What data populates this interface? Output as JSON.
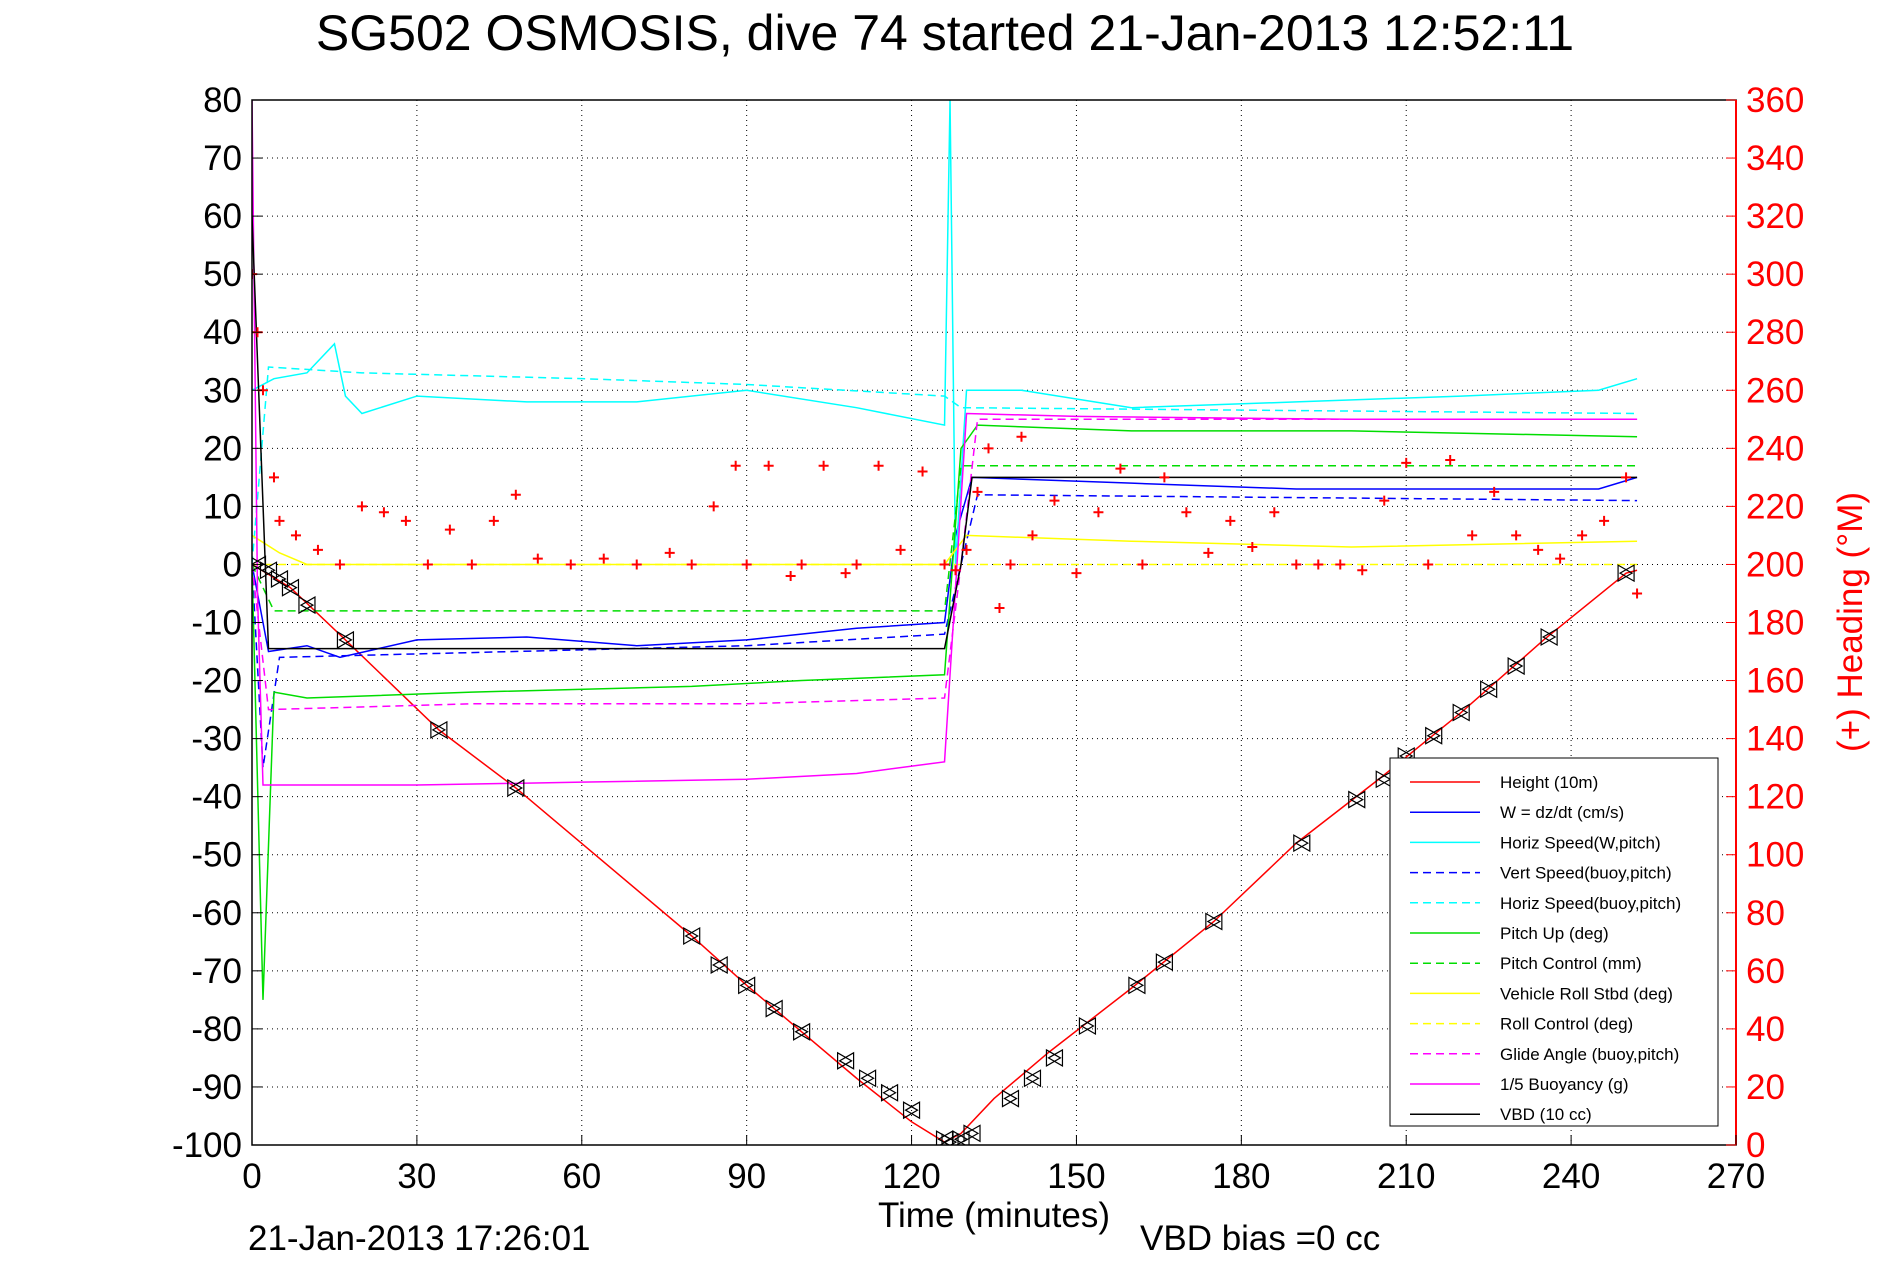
{
  "chart_data": {
    "type": "line",
    "title": "SG502 OSMOSIS, dive 74 started 21-Jan-2013 12:52:11",
    "xlabel": "Time (minutes)",
    "ylabel": "",
    "y2label": "(+) Heading (°M)",
    "xlim": [
      0,
      270
    ],
    "ylim": [
      -100,
      80
    ],
    "y2lim": [
      0,
      360
    ],
    "x_ticks": [
      "0",
      "30",
      "60",
      "90",
      "120",
      "150",
      "180",
      "210",
      "240",
      "270"
    ],
    "y_ticks": [
      "80",
      "70",
      "60",
      "50",
      "40",
      "30",
      "20",
      "10",
      "0",
      "-10",
      "-20",
      "-30",
      "-40",
      "-50",
      "-60",
      "-70",
      "-80",
      "-90",
      "-100"
    ],
    "y2_ticks": [
      "360",
      "340",
      "320",
      "300",
      "280",
      "260",
      "240",
      "220",
      "200",
      "180",
      "160",
      "140",
      "120",
      "100",
      "80",
      "60",
      "40",
      "20",
      "0"
    ],
    "grid": true,
    "legend_position": "bottom-right",
    "footer_date": "21-Jan-2013 17:26:01",
    "footer_bias": "VBD bias =0 cc",
    "series": [
      {
        "name": "Height (10m)",
        "color": "#ff0000",
        "style": "solid",
        "x": [
          0,
          7,
          17,
          34,
          48,
          80,
          90,
          100,
          110,
          120,
          126,
          129,
          135,
          145,
          160,
          175,
          190,
          205,
          220,
          235,
          250,
          252
        ],
        "y": [
          0,
          -4,
          -13,
          -28.5,
          -38.5,
          -64,
          -72.5,
          -80.5,
          -88.5,
          -96,
          -99.5,
          -98,
          -92,
          -84,
          -73,
          -61.5,
          -48,
          -37,
          -25.5,
          -13,
          -1.5,
          -1
        ]
      },
      {
        "name": "W = dz/dt (cm/s)",
        "color": "#0000ff",
        "style": "solid",
        "x": [
          0,
          3,
          10,
          16,
          30,
          50,
          70,
          90,
          110,
          126,
          128,
          131,
          160,
          190,
          220,
          245,
          252
        ],
        "y": [
          0,
          -15,
          -14,
          -16,
          -13,
          -12.5,
          -14,
          -13,
          -11,
          -10,
          5,
          15,
          14,
          13,
          13,
          13,
          15
        ]
      },
      {
        "name": "Horiz Speed(W,pitch)",
        "color": "#00ffff",
        "style": "solid",
        "x": [
          0,
          4,
          10,
          15,
          17,
          20,
          30,
          50,
          70,
          90,
          110,
          126,
          127,
          128,
          130,
          140,
          160,
          190,
          220,
          245,
          252
        ],
        "y": [
          30,
          32,
          33,
          38,
          29,
          26,
          29,
          28,
          28,
          30,
          27,
          24,
          80,
          0,
          30,
          30,
          27,
          28,
          29,
          30,
          32
        ]
      },
      {
        "name": "Vert Speed(buoy,pitch)",
        "color": "#0000ff",
        "style": "dashed",
        "x": [
          0,
          2,
          5,
          90,
          126,
          129,
          132,
          252
        ],
        "y": [
          0,
          -35,
          -16,
          -14,
          -12,
          0,
          12,
          11
        ]
      },
      {
        "name": "Horiz Speed(buoy,pitch)",
        "color": "#00ffff",
        "style": "dashed",
        "x": [
          0,
          3,
          20,
          60,
          90,
          126,
          129,
          252
        ],
        "y": [
          0,
          34,
          33,
          32,
          31,
          29,
          27,
          26
        ]
      },
      {
        "name": "Pitch Up (deg)",
        "color": "#00dd00",
        "style": "solid",
        "x": [
          0,
          2,
          4,
          10,
          40,
          80,
          100,
          126,
          129,
          132,
          160,
          200,
          252
        ],
        "y": [
          0,
          -75,
          -22,
          -23,
          -22,
          -21,
          -20,
          -19,
          20,
          24,
          23,
          23,
          22
        ]
      },
      {
        "name": "Pitch Control (mm)",
        "color": "#00dd00",
        "style": "dashed",
        "x": [
          0,
          4,
          126,
          129,
          252
        ],
        "y": [
          0,
          -8,
          -8,
          17,
          17
        ]
      },
      {
        "name": "Vehicle Roll Stbd (deg)",
        "color": "#ffff00",
        "style": "solid",
        "x": [
          0,
          5,
          10,
          50,
          80,
          126,
          130,
          160,
          200,
          252
        ],
        "y": [
          5,
          2,
          0,
          0,
          0,
          0,
          5,
          4,
          3,
          4
        ]
      },
      {
        "name": "Roll Control (deg)",
        "color": "#ffff00",
        "style": "dashed",
        "x": [
          0,
          4,
          126,
          129,
          252
        ],
        "y": [
          0,
          0,
          0,
          0,
          0
        ]
      },
      {
        "name": "Glide Angle (buoy,pitch)",
        "color": "#ff00ff",
        "style": "dashed",
        "x": [
          0,
          3,
          40,
          90,
          126,
          129,
          132,
          252
        ],
        "y": [
          0,
          -25,
          -24,
          -24,
          -23,
          0,
          25,
          25
        ]
      },
      {
        "name": "1/5 Buoyancy (g)",
        "color": "#ff00ff",
        "style": "solid",
        "x": [
          0,
          1,
          2,
          30,
          60,
          90,
          110,
          126,
          130,
          150,
          200,
          252
        ],
        "y": [
          80,
          -5,
          -38,
          -38,
          -37.5,
          -37,
          -36,
          -34,
          26,
          25.5,
          25,
          25
        ]
      },
      {
        "name": "VBD (10 cc)",
        "color": "#000000",
        "style": "solid",
        "x": [
          0,
          3,
          30,
          126,
          129,
          131,
          252
        ],
        "y": [
          60,
          -14.5,
          -14.5,
          -14.5,
          0,
          15,
          15
        ]
      }
    ],
    "heading_series": {
      "name": "(+) Heading",
      "color": "#ff0000",
      "marker": "+",
      "x": [
        0,
        1,
        2,
        4,
        5,
        8,
        12,
        16,
        20,
        24,
        28,
        32,
        36,
        40,
        44,
        48,
        52,
        58,
        64,
        70,
        76,
        80,
        84,
        88,
        90,
        94,
        98,
        100,
        104,
        108,
        110,
        114,
        118,
        122,
        126,
        128,
        130,
        132,
        134,
        136,
        138,
        140,
        142,
        146,
        150,
        154,
        158,
        162,
        166,
        170,
        174,
        178,
        182,
        186,
        190,
        194,
        198,
        202,
        206,
        210,
        214,
        218,
        222,
        226,
        230,
        234,
        238,
        242,
        246,
        250,
        252
      ],
      "y": [
        300,
        280,
        260,
        230,
        215,
        210,
        205,
        200,
        220,
        218,
        215,
        200,
        212,
        200,
        215,
        224,
        202,
        200,
        202,
        200,
        204,
        200,
        220,
        234,
        200,
        234,
        196,
        200,
        234,
        197,
        200,
        234,
        205,
        232,
        200,
        198,
        205,
        225,
        240,
        185,
        200,
        244,
        210,
        222,
        197,
        218,
        233,
        200,
        230,
        218,
        204,
        215,
        206,
        218,
        200,
        200,
        200,
        198,
        222,
        235,
        200,
        236,
        210,
        225,
        210,
        205,
        202,
        210,
        215,
        230,
        190
      ]
    },
    "depth_markers": {
      "marker": "triangle-pair",
      "x": [
        1,
        3,
        5,
        7,
        10,
        17,
        34,
        48,
        80,
        85,
        90,
        95,
        100,
        108,
        112,
        116,
        120,
        126,
        127,
        129,
        131,
        138,
        142,
        146,
        152,
        161,
        166,
        175,
        191,
        201,
        206,
        210,
        215,
        220,
        225,
        230,
        236,
        250
      ],
      "y": [
        0,
        -1,
        -2.5,
        -4,
        -7,
        -13,
        -28.5,
        -38.5,
        -64,
        -69,
        -72.5,
        -76.5,
        -80.5,
        -85.5,
        -88.5,
        -91,
        -94,
        -99,
        -99.5,
        -99,
        -98,
        -92,
        -88.5,
        -85,
        -79.5,
        -72.5,
        -68.5,
        -61.5,
        -48,
        -40.5,
        -37,
        -33,
        -29.5,
        -25.5,
        -21.5,
        -17.5,
        -12.5,
        -1.5
      ]
    }
  }
}
